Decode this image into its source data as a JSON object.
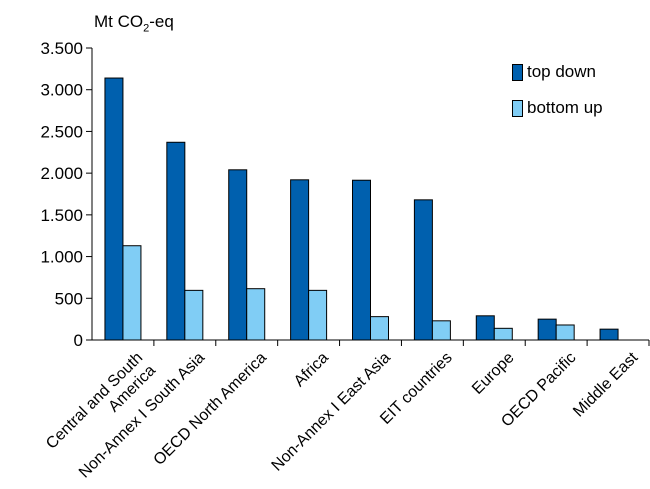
{
  "chart_data": {
    "type": "bar",
    "title": "",
    "unit_label": {
      "main": "Mt CO",
      "sub": "2",
      "suffix": "-eq"
    },
    "xlabel": "",
    "ylabel": "",
    "ylim": [
      0,
      3500
    ],
    "yticks": [
      0,
      500,
      1000,
      1500,
      2000,
      2500,
      3000,
      3500
    ],
    "ytick_labels": [
      "0",
      "500",
      "1.000",
      "1.500",
      "2.000",
      "2.500",
      "3.000",
      "3.500"
    ],
    "grid": false,
    "legend_position": "top-right",
    "categories": [
      [
        "Central and South",
        "America"
      ],
      [
        "Non-Annex I South Asia"
      ],
      [
        "OECD North America"
      ],
      [
        "Africa"
      ],
      [
        "Non-Annex I East Asia"
      ],
      [
        "EIT countries"
      ],
      [
        "Europe"
      ],
      [
        "OECD Pacific"
      ],
      [
        "Middle East"
      ]
    ],
    "series": [
      {
        "name": "top down",
        "color": "#0060ae",
        "values": [
          3140,
          2370,
          2040,
          1920,
          1915,
          1680,
          290,
          250,
          130
        ]
      },
      {
        "name": "bottom up",
        "color": "#80cdf5",
        "values": [
          1130,
          595,
          615,
          595,
          280,
          230,
          140,
          180,
          0
        ]
      }
    ]
  }
}
